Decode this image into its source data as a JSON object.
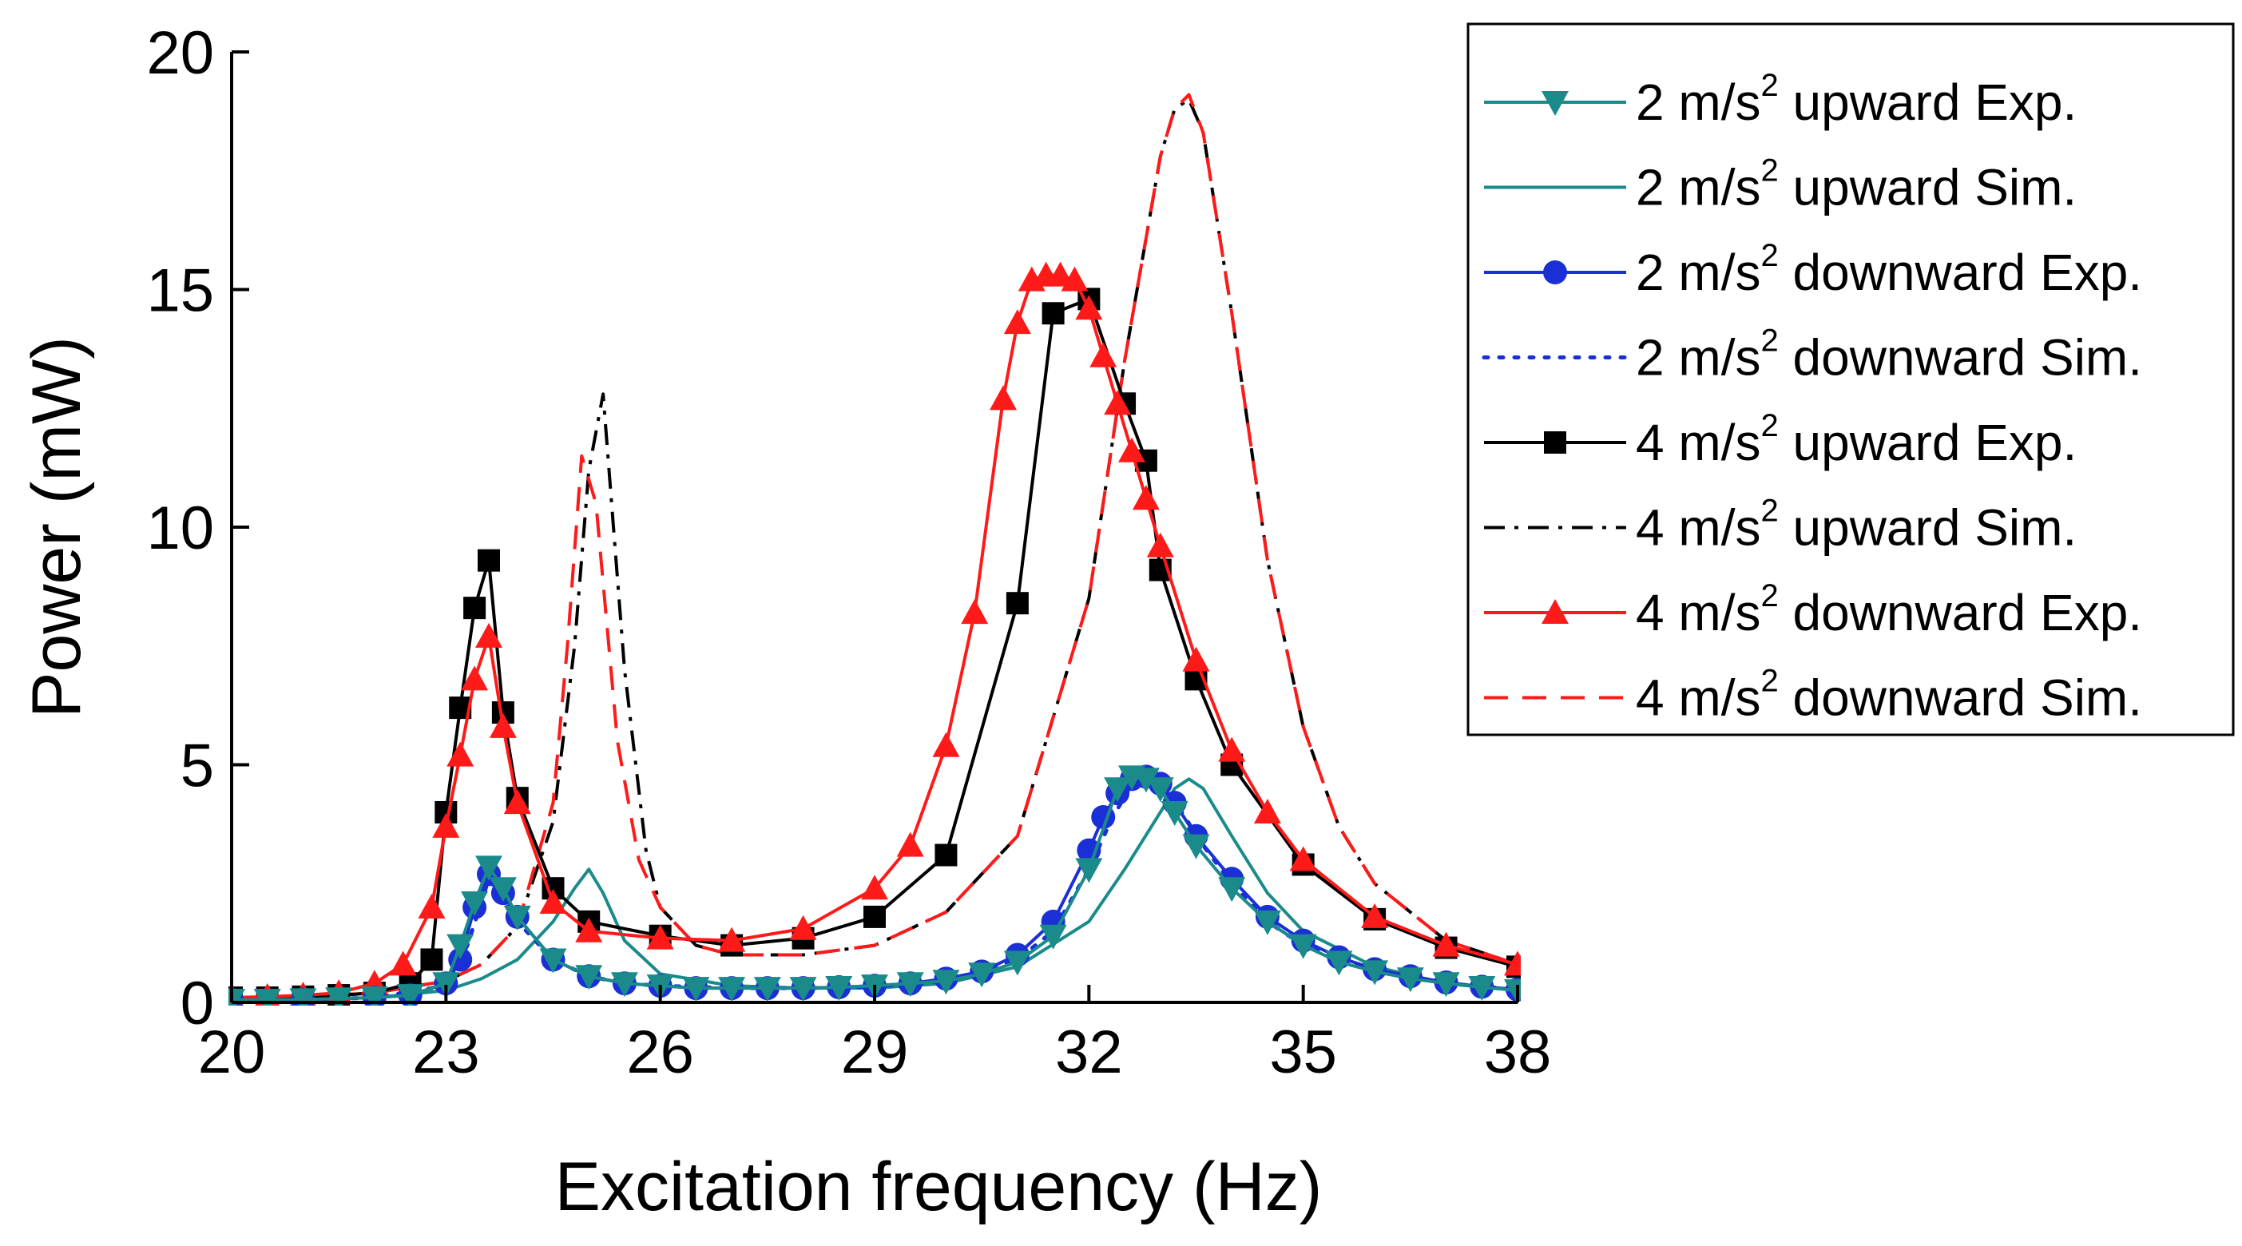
{
  "chart_data": {
    "type": "line",
    "xlabel": "Excitation frequency (Hz)",
    "ylabel": "Power (mW)",
    "xlim": [
      20,
      38
    ],
    "ylim": [
      0,
      20
    ],
    "xticks": [
      20,
      23,
      26,
      29,
      32,
      35,
      38
    ],
    "yticks": [
      0,
      5,
      10,
      15,
      20
    ],
    "xtick_labels": [
      "20",
      "23",
      "26",
      "29",
      "32",
      "35",
      "38"
    ],
    "ytick_labels": [
      "0",
      "5",
      "10",
      "15",
      "20"
    ],
    "grid": false,
    "legend_position": "top-right",
    "series": [
      {
        "name_parts": [
          "2 m/s",
          "2",
          " upward Exp."
        ],
        "color": "#1a8a8a",
        "style": "solid",
        "marker": "triangle-down",
        "x": [
          20,
          20.5,
          21,
          21.5,
          22,
          22.5,
          23,
          23.2,
          23.4,
          23.6,
          23.8,
          24,
          24.5,
          25,
          25.5,
          26,
          26.5,
          27,
          27.5,
          28,
          28.5,
          29,
          29.5,
          30,
          30.5,
          31,
          31.5,
          32,
          32.4,
          32.6,
          32.8,
          33,
          33.2,
          33.5,
          34,
          34.5,
          35,
          35.5,
          36,
          36.5,
          37,
          37.5,
          38
        ],
        "y": [
          0.05,
          0.05,
          0.06,
          0.08,
          0.1,
          0.15,
          0.4,
          1.2,
          2.1,
          2.85,
          2.4,
          1.8,
          0.9,
          0.55,
          0.4,
          0.35,
          0.3,
          0.3,
          0.3,
          0.3,
          0.32,
          0.35,
          0.4,
          0.45,
          0.6,
          0.85,
          1.4,
          2.8,
          4.5,
          4.75,
          4.7,
          4.5,
          4.0,
          3.3,
          2.4,
          1.7,
          1.2,
          0.85,
          0.65,
          0.5,
          0.4,
          0.32,
          0.25
        ]
      },
      {
        "name_parts": [
          "2 m/s",
          "2",
          " upward Sim."
        ],
        "color": "#1a8a8a",
        "style": "solid",
        "marker": "none",
        "x": [
          20,
          21,
          22,
          23,
          23.5,
          24,
          24.5,
          24.8,
          25,
          25.2,
          25.5,
          26,
          27,
          28,
          29,
          30,
          31,
          32,
          32.5,
          33,
          33.2,
          33.4,
          33.6,
          34,
          34.5,
          35,
          36,
          37,
          38
        ],
        "y": [
          0.04,
          0.06,
          0.1,
          0.25,
          0.5,
          0.9,
          1.7,
          2.4,
          2.8,
          2.3,
          1.3,
          0.6,
          0.35,
          0.3,
          0.3,
          0.4,
          0.75,
          1.7,
          2.8,
          4.0,
          4.5,
          4.7,
          4.5,
          3.5,
          2.3,
          1.5,
          0.75,
          0.4,
          0.25
        ]
      },
      {
        "name_parts": [
          "2 m/s",
          "2",
          " downward Exp."
        ],
        "color": "#1a2fd6",
        "style": "solid",
        "marker": "circle",
        "x": [
          20,
          21,
          22,
          22.5,
          23,
          23.2,
          23.4,
          23.6,
          23.8,
          24,
          24.5,
          25,
          25.5,
          26,
          26.5,
          27,
          27.5,
          28,
          28.5,
          29,
          29.5,
          30,
          30.5,
          31,
          31.5,
          32,
          32.2,
          32.4,
          32.6,
          32.8,
          33,
          33.2,
          33.5,
          34,
          34.5,
          35,
          35.5,
          36,
          36.5,
          37,
          37.5,
          38
        ],
        "y": [
          0.05,
          0.06,
          0.1,
          0.15,
          0.4,
          0.9,
          2.0,
          2.7,
          2.3,
          1.8,
          0.9,
          0.55,
          0.4,
          0.35,
          0.3,
          0.3,
          0.3,
          0.3,
          0.32,
          0.35,
          0.4,
          0.5,
          0.65,
          1.0,
          1.7,
          3.2,
          3.9,
          4.4,
          4.7,
          4.75,
          4.6,
          4.2,
          3.5,
          2.6,
          1.8,
          1.3,
          0.95,
          0.7,
          0.55,
          0.42,
          0.33,
          0.27
        ]
      },
      {
        "name_parts": [
          "2 m/s",
          "2",
          " downward Sim."
        ],
        "color": "#1a2fd6",
        "style": "dotted",
        "marker": "none",
        "x": [
          20,
          21,
          22,
          23,
          23.3,
          23.6,
          24,
          24.5,
          25,
          25.5,
          26,
          27,
          28,
          29,
          30,
          31,
          31.5,
          32,
          32.3,
          32.6,
          32.8,
          33,
          33.3,
          33.6,
          34,
          34.5,
          35,
          36,
          37,
          38
        ],
        "y": [
          0.05,
          0.06,
          0.1,
          0.35,
          1.2,
          2.6,
          1.7,
          0.9,
          0.55,
          0.4,
          0.35,
          0.3,
          0.3,
          0.33,
          0.45,
          0.9,
          1.5,
          2.8,
          3.8,
          4.6,
          4.75,
          4.6,
          4.0,
          3.3,
          2.5,
          1.7,
          1.2,
          0.65,
          0.4,
          0.27
        ]
      },
      {
        "name_parts": [
          "4 m/s",
          "2",
          " upward Exp."
        ],
        "color": "#000000",
        "style": "solid",
        "marker": "square",
        "x": [
          20,
          20.5,
          21,
          21.5,
          22,
          22.5,
          22.8,
          23,
          23.2,
          23.4,
          23.6,
          23.8,
          24,
          24.5,
          25,
          26,
          27,
          28,
          29,
          30,
          31,
          31.5,
          32,
          32.5,
          32.8,
          33,
          33.5,
          34,
          35,
          36,
          37,
          38
        ],
        "y": [
          0.1,
          0.1,
          0.12,
          0.15,
          0.2,
          0.4,
          0.9,
          4.0,
          6.2,
          8.3,
          9.3,
          6.1,
          4.3,
          2.4,
          1.7,
          1.4,
          1.2,
          1.35,
          1.8,
          3.1,
          8.4,
          14.5,
          14.8,
          12.6,
          11.4,
          9.1,
          6.8,
          5.0,
          2.9,
          1.75,
          1.15,
          0.75
        ]
      },
      {
        "name_parts": [
          "4 m/s",
          "2",
          " upward Sim."
        ],
        "color": "#000000",
        "style": "dashdot",
        "marker": "none",
        "x": [
          20,
          21,
          22,
          23,
          23.5,
          24,
          24.5,
          24.8,
          25,
          25.2,
          25.5,
          25.8,
          26,
          26.5,
          27,
          28,
          29,
          30,
          31,
          32,
          32.5,
          33,
          33.2,
          33.4,
          33.6,
          34,
          34.5,
          35,
          35.5,
          36,
          37,
          38
        ],
        "y": [
          0.08,
          0.12,
          0.2,
          0.45,
          0.8,
          1.6,
          3.8,
          7.5,
          11.2,
          12.8,
          7.0,
          3.2,
          2.0,
          1.2,
          1.0,
          1.0,
          1.2,
          1.9,
          3.5,
          8.5,
          13.5,
          17.8,
          18.8,
          19.0,
          18.3,
          14.5,
          9.3,
          5.8,
          3.7,
          2.5,
          1.3,
          0.8
        ]
      },
      {
        "name_parts": [
          "4 m/s",
          "2",
          " downward Exp."
        ],
        "color": "#ff1a1a",
        "style": "solid",
        "marker": "triangle-up",
        "x": [
          20,
          20.5,
          21,
          21.5,
          22,
          22.4,
          22.8,
          23,
          23.2,
          23.4,
          23.6,
          23.8,
          24,
          24.5,
          25,
          26,
          27,
          28,
          29,
          29.5,
          30,
          30.4,
          30.8,
          31,
          31.2,
          31.4,
          31.6,
          31.8,
          32,
          32.2,
          32.4,
          32.6,
          32.8,
          33,
          33.5,
          34,
          34.5,
          35,
          36,
          37,
          38
        ],
        "y": [
          0.1,
          0.12,
          0.15,
          0.2,
          0.4,
          0.8,
          2.0,
          3.7,
          5.2,
          6.8,
          7.7,
          5.8,
          4.2,
          2.1,
          1.5,
          1.35,
          1.3,
          1.55,
          2.4,
          3.3,
          5.4,
          8.2,
          12.7,
          14.3,
          15.2,
          15.3,
          15.3,
          15.2,
          14.6,
          13.6,
          12.6,
          11.6,
          10.6,
          9.6,
          7.2,
          5.3,
          4.0,
          3.0,
          1.8,
          1.2,
          0.8
        ]
      },
      {
        "name_parts": [
          "4 m/s",
          "2",
          " downward Sim."
        ],
        "color": "#ff1a1a",
        "style": "dashed",
        "marker": "none",
        "x": [
          20,
          21,
          22,
          23,
          23.5,
          24,
          24.5,
          24.7,
          24.9,
          25.1,
          25.4,
          25.7,
          26,
          26.5,
          27,
          28,
          29,
          30,
          31,
          32,
          32.5,
          33,
          33.2,
          33.4,
          33.6,
          34,
          34.5,
          35,
          35.5,
          36,
          37,
          38
        ],
        "y": [
          0.08,
          0.12,
          0.2,
          0.45,
          0.8,
          1.6,
          4.2,
          7.5,
          11.5,
          10.5,
          5.5,
          3.0,
          2.0,
          1.2,
          1.0,
          1.0,
          1.2,
          1.9,
          3.5,
          8.5,
          13.5,
          17.8,
          18.8,
          19.1,
          18.3,
          14.5,
          9.3,
          5.8,
          3.7,
          2.5,
          1.3,
          0.8
        ]
      }
    ]
  }
}
